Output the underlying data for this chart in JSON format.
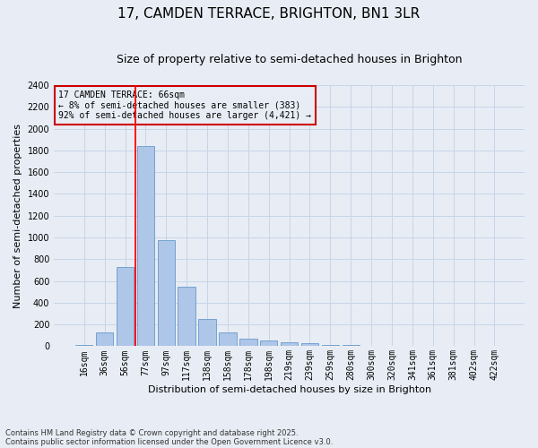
{
  "title_line1": "17, CAMDEN TERRACE, BRIGHTON, BN1 3LR",
  "title_line2": "Size of property relative to semi-detached houses in Brighton",
  "xlabel": "Distribution of semi-detached houses by size in Brighton",
  "ylabel": "Number of semi-detached properties",
  "bar_values": [
    15,
    130,
    730,
    1840,
    975,
    545,
    250,
    130,
    70,
    50,
    35,
    25,
    15,
    10,
    5,
    3,
    2,
    1,
    1,
    1,
    0
  ],
  "bar_labels": [
    "16sqm",
    "36sqm",
    "56sqm",
    "77sqm",
    "97sqm",
    "117sqm",
    "138sqm",
    "158sqm",
    "178sqm",
    "198sqm",
    "219sqm",
    "239sqm",
    "259sqm",
    "280sqm",
    "300sqm",
    "320sqm",
    "341sqm",
    "361sqm",
    "381sqm",
    "402sqm",
    "422sqm"
  ],
  "bar_color": "#aec6e8",
  "bar_edge_color": "#6699cc",
  "grid_color": "#c8d4e8",
  "bg_color": "#e8edf5",
  "red_line_x": 2.5,
  "annotation_text": "17 CAMDEN TERRACE: 66sqm\n← 8% of semi-detached houses are smaller (383)\n92% of semi-detached houses are larger (4,421) →",
  "annotation_box_color": "#cc0000",
  "ylim": [
    0,
    2400
  ],
  "yticks": [
    0,
    200,
    400,
    600,
    800,
    1000,
    1200,
    1400,
    1600,
    1800,
    2000,
    2200,
    2400
  ],
  "footnote_line1": "Contains HM Land Registry data © Crown copyright and database right 2025.",
  "footnote_line2": "Contains public sector information licensed under the Open Government Licence v3.0.",
  "title_fontsize": 11,
  "subtitle_fontsize": 9,
  "label_fontsize": 8,
  "tick_fontsize": 7,
  "annot_fontsize": 7
}
